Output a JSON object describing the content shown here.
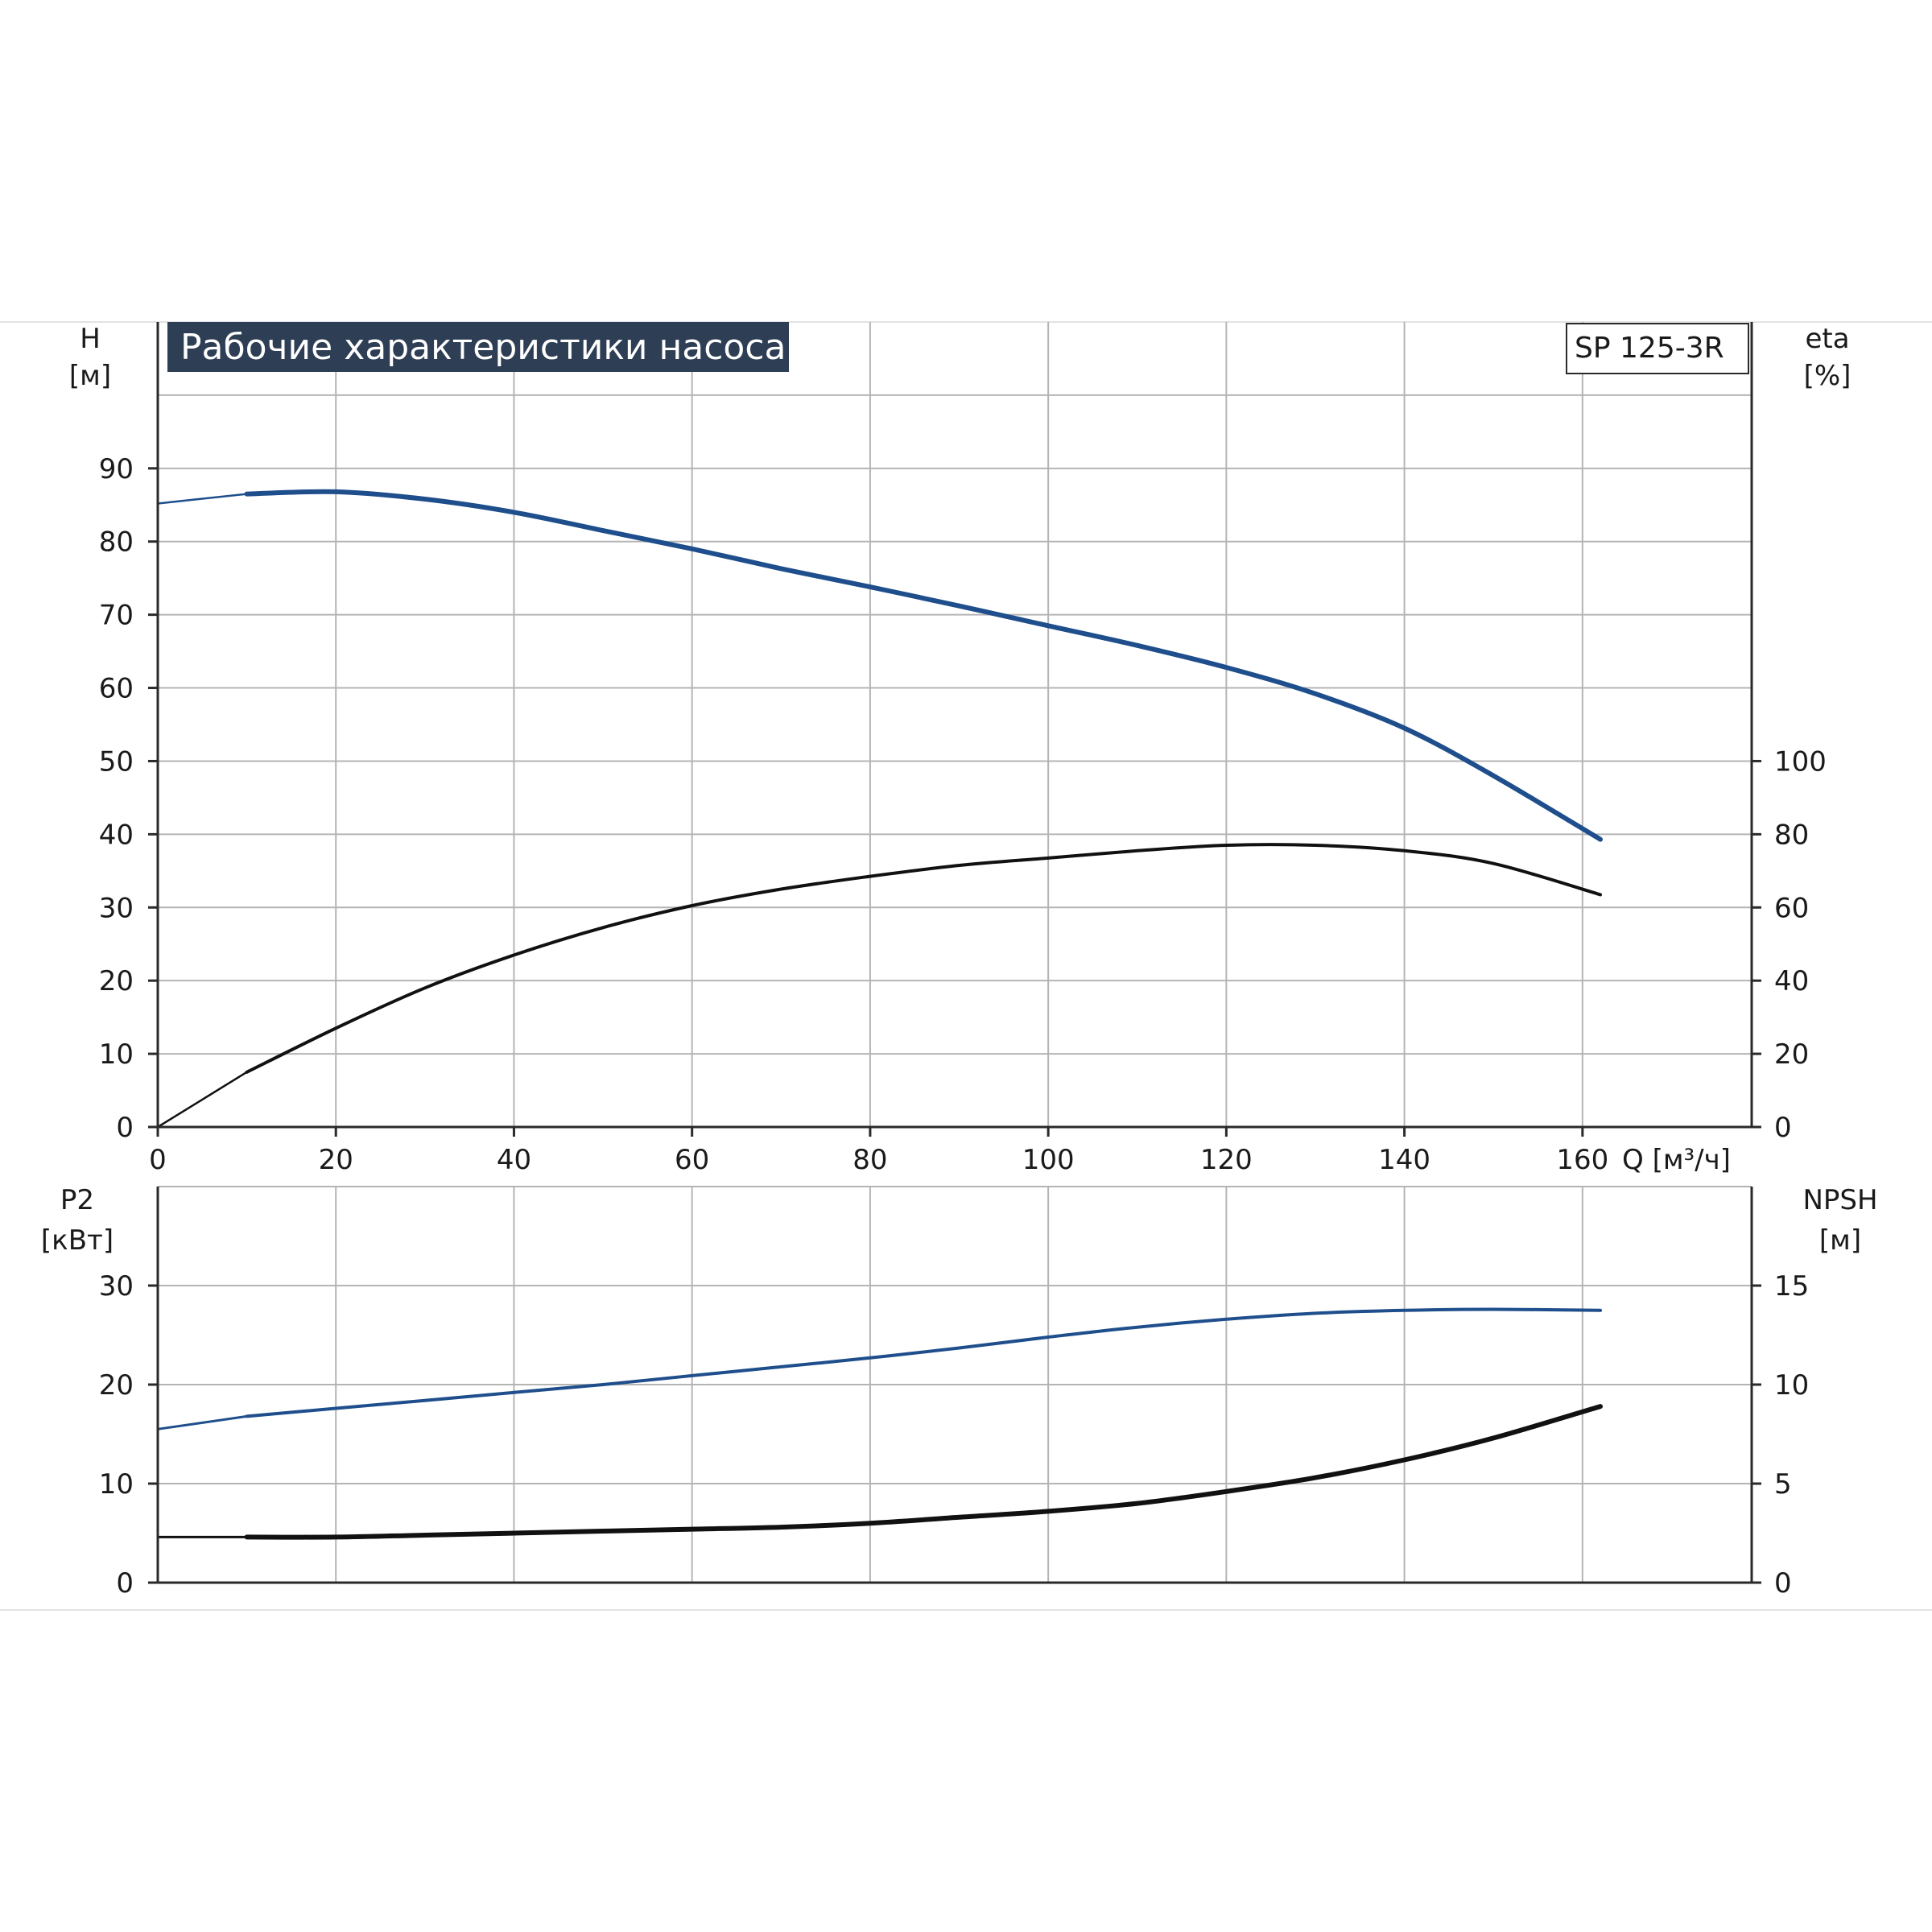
{
  "chart_data": [
    {
      "type": "line",
      "title": "Рабочие характеристики насоса",
      "model_label": "SP 125-3R",
      "xlabel": "Q [м³/ч]",
      "x_tick_labels": [
        "0",
        "20",
        "40",
        "60",
        "80",
        "100",
        "120",
        "140",
        "160"
      ],
      "xlim": [
        0,
        179
      ],
      "ylabel_left": [
        "H",
        "[м]"
      ],
      "ylim_left": [
        0,
        110
      ],
      "y_left_tick_labels": [
        "0",
        "10",
        "20",
        "30",
        "40",
        "50",
        "60",
        "70",
        "80",
        "90"
      ],
      "ylabel_right": [
        "eta",
        "[%]"
      ],
      "ylim_right": [
        0,
        220
      ],
      "y_right_tick_labels": [
        "0",
        "20",
        "40",
        "60",
        "80",
        "100"
      ],
      "grid": true,
      "series": [
        {
          "axis": "left",
          "color": "#1f4e8c",
          "x": [
            0,
            10,
            20,
            30,
            40,
            50,
            60,
            70,
            80,
            90,
            100,
            110,
            120,
            130,
            140,
            150,
            162
          ],
          "values": [
            85.2,
            86.5,
            86.8,
            85.8,
            84.0,
            81.5,
            79.0,
            76.3,
            73.8,
            71.2,
            68.5,
            65.8,
            62.8,
            59.2,
            54.5,
            48.0,
            39.3
          ]
        },
        {
          "axis": "right",
          "color": "#111111",
          "x": [
            0,
            10,
            20,
            30,
            40,
            50,
            60,
            70,
            80,
            90,
            100,
            110,
            120,
            130,
            140,
            150,
            162
          ],
          "values": [
            0,
            15,
            27,
            38,
            47,
            54.5,
            60.5,
            65,
            68.5,
            71.5,
            73.5,
            75.5,
            77,
            77,
            75.5,
            72,
            63.5
          ]
        }
      ]
    },
    {
      "type": "line",
      "ylabel_left": [
        "P2",
        "[кВт]"
      ],
      "ylim_left": [
        0,
        40
      ],
      "y_left_tick_labels": [
        "0",
        "10",
        "20",
        "30"
      ],
      "ylabel_right": [
        "NPSH",
        "[м]"
      ],
      "ylim_right": [
        0,
        20
      ],
      "y_right_tick_labels": [
        "0",
        "5",
        "10",
        "15"
      ],
      "xlim": [
        0,
        179
      ],
      "grid": true,
      "series": [
        {
          "axis": "left",
          "color": "#1f4e8c",
          "x": [
            0,
            10,
            20,
            30,
            40,
            50,
            60,
            70,
            80,
            90,
            100,
            110,
            120,
            130,
            140,
            150,
            162
          ],
          "values": [
            15.5,
            16.8,
            17.6,
            18.4,
            19.2,
            20.0,
            20.9,
            21.8,
            22.7,
            23.7,
            24.8,
            25.8,
            26.6,
            27.2,
            27.5,
            27.6,
            27.5
          ]
        },
        {
          "axis": "right",
          "color": "#111111",
          "x": [
            0,
            10,
            20,
            30,
            40,
            50,
            60,
            70,
            80,
            90,
            100,
            110,
            120,
            130,
            140,
            150,
            162
          ],
          "values": [
            2.3,
            2.3,
            2.3,
            2.4,
            2.5,
            2.6,
            2.7,
            2.8,
            3.0,
            3.3,
            3.6,
            4.0,
            4.6,
            5.3,
            6.2,
            7.3,
            8.9
          ]
        }
      ]
    }
  ]
}
